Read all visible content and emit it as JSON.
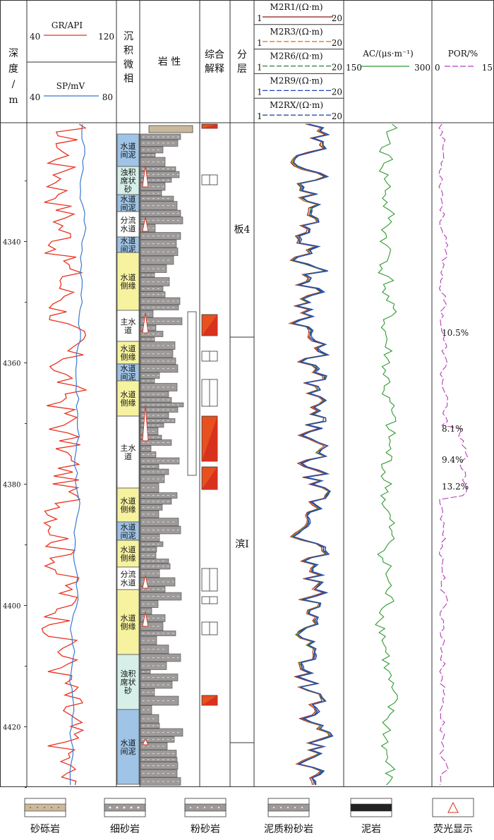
{
  "header": {
    "depth": [
      "深",
      "度",
      "/",
      "m"
    ],
    "gr": {
      "label": "GR/API",
      "min": "40",
      "max": "120",
      "color": "#e8321e"
    },
    "sp": {
      "label": "SP/mV",
      "min": "40",
      "max": "80",
      "color": "#3a79d0"
    },
    "facies": [
      "沉",
      "积",
      "微",
      "相"
    ],
    "lithology": "岩  性",
    "interp": [
      "综合",
      "解释"
    ],
    "layer": [
      "分",
      "层"
    ],
    "res": [
      {
        "label": "M2R1/(Ω·m)",
        "min": "1",
        "max": "20",
        "color": "#8b1a1a"
      },
      {
        "label": "M2R3/(Ω·m)",
        "min": "1",
        "max": "20",
        "color": "#e87722"
      },
      {
        "label": "M2R6/(Ω·m)",
        "min": "1",
        "max": "20",
        "color": "#2e7d32"
      },
      {
        "label": "M2R9/(Ω·m)",
        "min": "1",
        "max": "20",
        "color": "#1f3fbf"
      },
      {
        "label": "M2RX/(Ω·m)",
        "min": "1",
        "max": "20",
        "color": "#2a4fa8"
      }
    ],
    "ac": {
      "label": "AC/(μs·m⁻¹)",
      "min": "150",
      "max": "300",
      "color": "#2f9a2f"
    },
    "por": {
      "label": "POR/%",
      "min": "0",
      "max": "15",
      "color": "#b33fb3"
    }
  },
  "depth_ticks": [
    "4340",
    "4360",
    "4380",
    "4400",
    "4420"
  ],
  "layers": [
    {
      "name": "板4"
    },
    {
      "name": "滨Ⅰ"
    }
  ],
  "facies": [
    {
      "lines": [
        "水道",
        "间泥"
      ],
      "type": "mud"
    },
    {
      "lines": [
        "浊积",
        "席状",
        "砂"
      ],
      "type": "turb"
    },
    {
      "lines": [
        "水道",
        "间泥"
      ],
      "type": "mud"
    },
    {
      "lines": [
        "分流",
        "水道"
      ],
      "type": "white"
    },
    {
      "lines": [
        "水道",
        "间泥"
      ],
      "type": "mud"
    },
    {
      "lines": [
        "水道",
        "侧缘"
      ],
      "type": "side"
    },
    {
      "lines": [
        "主水",
        "道"
      ],
      "type": "white"
    },
    {
      "lines": [
        "水道",
        "侧缘"
      ],
      "type": "side"
    },
    {
      "lines": [
        "水道",
        "间泥"
      ],
      "type": "mud"
    },
    {
      "lines": [
        "水道",
        "侧缘"
      ],
      "type": "side"
    },
    {
      "lines": [
        "主水",
        "道"
      ],
      "type": "white"
    },
    {
      "lines": [
        "水道",
        "侧缘"
      ],
      "type": "side"
    },
    {
      "lines": [
        "水道",
        "间泥"
      ],
      "type": "mud"
    },
    {
      "lines": [
        "水道",
        "侧缘"
      ],
      "type": "side"
    },
    {
      "lines": [
        "分流",
        "水道"
      ],
      "type": "white"
    },
    {
      "lines": [
        "水道",
        "侧缘"
      ],
      "type": "side"
    },
    {
      "lines": [
        "浊积",
        "席状",
        "砂"
      ],
      "type": "turb"
    },
    {
      "lines": [
        "水道",
        "间泥"
      ],
      "type": "mud"
    }
  ],
  "por_labels": [
    "10.5%",
    "8.1%",
    "9.4%",
    "13.2%"
  ],
  "legend": [
    "砂砾岩",
    "细砂岩",
    "粉砂岩",
    "泥质粉砂岩",
    "泥岩",
    "荧光显示"
  ],
  "colors": {
    "facies_mud": "#9fc4e6",
    "facies_side": "#f6f2a0",
    "facies_turb": "#d6efe8",
    "rock": "#9e9a9a",
    "oil": "#e8501e",
    "oil_dark": "#d8321e"
  },
  "chart_data": {
    "type": "well-log",
    "depth_range_m": [
      4322,
      4432
    ],
    "tracks": [
      {
        "name": "GR",
        "unit": "API",
        "range": [
          40,
          120
        ]
      },
      {
        "name": "SP",
        "unit": "mV",
        "range": [
          40,
          80
        ]
      },
      {
        "name": "M2R1/M2R3/M2R6/M2R9/M2RX",
        "unit": "Ω·m",
        "range": [
          1,
          20
        ]
      },
      {
        "name": "AC",
        "unit": "μs·m⁻¹",
        "range": [
          150,
          300
        ]
      },
      {
        "name": "POR",
        "unit": "%",
        "range": [
          0,
          15
        ]
      }
    ],
    "porosity_annotations": [
      {
        "value": "10.5%",
        "depth_m": 4355
      },
      {
        "value": "8.1%",
        "depth_m": 4370
      },
      {
        "value": "9.4%",
        "depth_m": 4375
      },
      {
        "value": "13.2%",
        "depth_m": 4379
      }
    ]
  }
}
